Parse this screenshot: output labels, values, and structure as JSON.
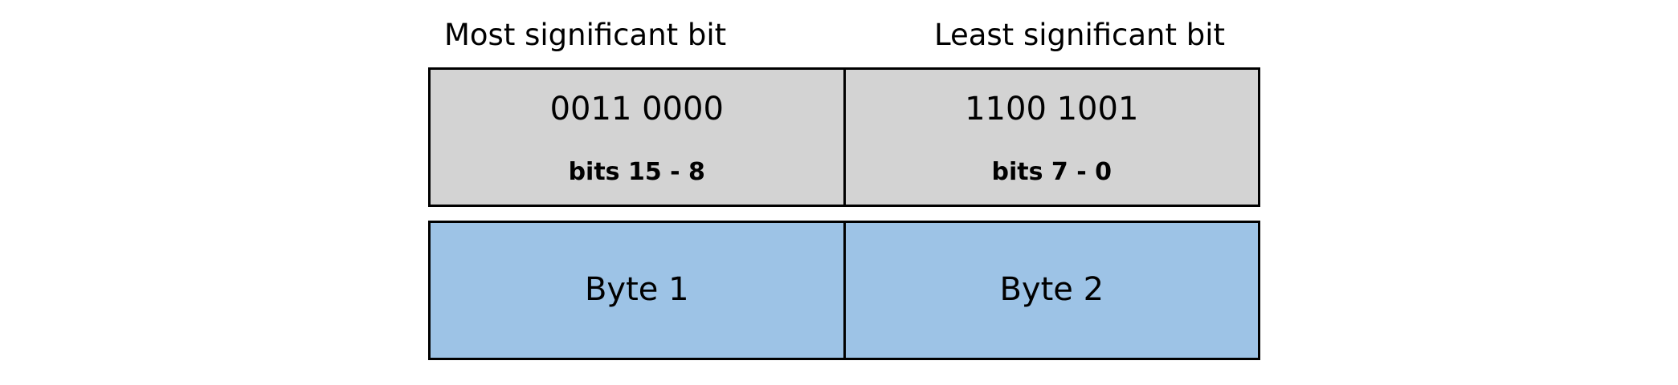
{
  "labels": {
    "msb": "Most significant bit",
    "lsb": "Least significant bit"
  },
  "bit_row": [
    {
      "value": "0011 0000",
      "range": "bits 15 - 8"
    },
    {
      "value": "1100 1001",
      "range": "bits 7 - 0"
    }
  ],
  "byte_row": [
    {
      "label": "Byte 1"
    },
    {
      "label": "Byte 2"
    }
  ],
  "colors": {
    "bit_fill": "#d3d3d3",
    "byte_fill": "#9dc3e6",
    "border": "#000000"
  }
}
